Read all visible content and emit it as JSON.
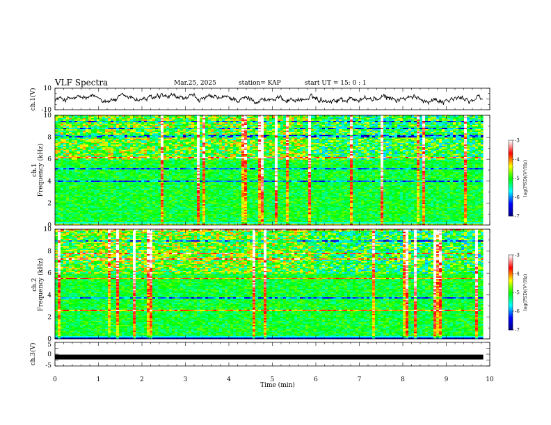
{
  "header": {
    "title": "VLF Spectra",
    "date": "Mar.25, 2025",
    "station": "station= KAP",
    "start": "start  UT  =   15: 0  : 1"
  },
  "chart_data": [
    {
      "type": "line",
      "name": "ch1_waveform",
      "ylabel": "ch.1(V)",
      "ylim": [
        -10,
        10
      ],
      "ytick_labels": [
        "10",
        "-10"
      ],
      "xlim": [
        0,
        10
      ],
      "color": "#000000"
    },
    {
      "type": "heatmap",
      "name": "ch1_spectrogram",
      "ylabel_line1": "ch.1",
      "ylabel_line2": "Frequency (kHz)",
      "ylim": [
        0,
        10
      ],
      "yticks": [
        0,
        2,
        4,
        6,
        8,
        10
      ],
      "ytick_labels": [
        "0",
        "2",
        "4",
        "6",
        "8",
        "10"
      ],
      "xlim": [
        0,
        9.85
      ],
      "colorbar": {
        "label": "log(PSD)(V²/Hz)",
        "range": [
          -7,
          -3
        ],
        "ticks": [
          -3,
          -4,
          -5,
          -6,
          -7
        ],
        "tick_labels": [
          "-3",
          "-4",
          "-5",
          "-6",
          "-7"
        ],
        "colors": [
          "#000080",
          "#0000ff",
          "#00ffff",
          "#00ff00",
          "#ffff00",
          "#ff0000",
          "#ffffff"
        ]
      }
    },
    {
      "type": "heatmap",
      "name": "ch2_spectrogram",
      "ylabel_line1": "ch.2",
      "ylabel_line2": "Frequency (kHz)",
      "ylim": [
        0,
        10
      ],
      "yticks": [
        0,
        2,
        4,
        6,
        8,
        10
      ],
      "ytick_labels": [
        "0",
        "2",
        "4",
        "6",
        "8",
        "10"
      ],
      "xlim": [
        0,
        9.85
      ],
      "colorbar": {
        "label": "log(PSD)(V²/Hz)",
        "range": [
          -7,
          -3
        ],
        "ticks": [
          -3,
          -4,
          -5,
          -6,
          -7
        ],
        "tick_labels": [
          "-3",
          "-4",
          "-5",
          "-6",
          "-7"
        ],
        "colors": [
          "#000080",
          "#0000ff",
          "#00ffff",
          "#00ff00",
          "#ffff00",
          "#ff0000",
          "#ffffff"
        ]
      }
    },
    {
      "type": "line",
      "name": "ch3_waveform",
      "ylabel": "ch.3(V)",
      "ylim": [
        -5,
        5
      ],
      "ytick_labels": [
        "5",
        "0",
        "-5"
      ],
      "xlim": [
        0,
        10
      ],
      "value": -1.2,
      "color": "#000000"
    }
  ],
  "x_axis": {
    "label": "Time (min)",
    "range": [
      0,
      10
    ],
    "ticks": [
      0,
      1,
      2,
      3,
      4,
      5,
      6,
      7,
      8,
      9,
      10
    ],
    "tick_labels": [
      "0",
      "1",
      "2",
      "3",
      "4",
      "5",
      "6",
      "7",
      "8",
      "9",
      "10"
    ]
  }
}
